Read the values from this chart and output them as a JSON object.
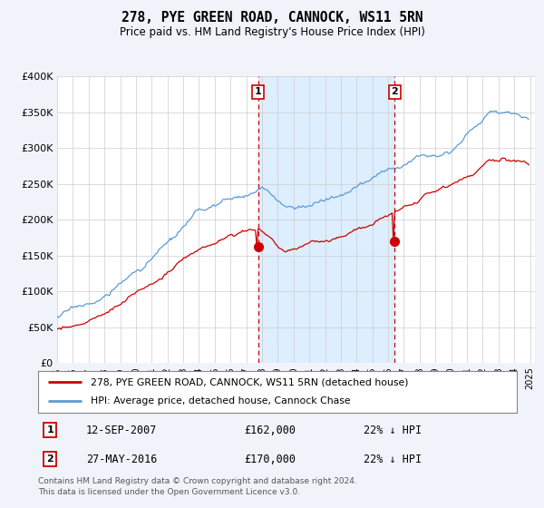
{
  "title": "278, PYE GREEN ROAD, CANNOCK, WS11 5RN",
  "subtitle": "Price paid vs. HM Land Registry's House Price Index (HPI)",
  "ylim": [
    0,
    400000
  ],
  "yticks": [
    0,
    50000,
    100000,
    150000,
    200000,
    250000,
    300000,
    350000,
    400000
  ],
  "ytick_labels": [
    "£0",
    "£50K",
    "£100K",
    "£150K",
    "£200K",
    "£250K",
    "£300K",
    "£350K",
    "£400K"
  ],
  "hpi_color": "#5b9bd5",
  "price_color": "#cc0000",
  "shade_color": "#ddeeff",
  "marker1_price": 162000,
  "marker2_price": 170000,
  "date1_year": 2007.75,
  "date2_year": 2016.417,
  "legend_entry1": "278, PYE GREEN ROAD, CANNOCK, WS11 5RN (detached house)",
  "legend_entry2": "HPI: Average price, detached house, Cannock Chase",
  "footer": "Contains HM Land Registry data © Crown copyright and database right 2024.\nThis data is licensed under the Open Government Licence v3.0.",
  "bg_color": "#f0f4fa",
  "plot_bg": "#ffffff"
}
